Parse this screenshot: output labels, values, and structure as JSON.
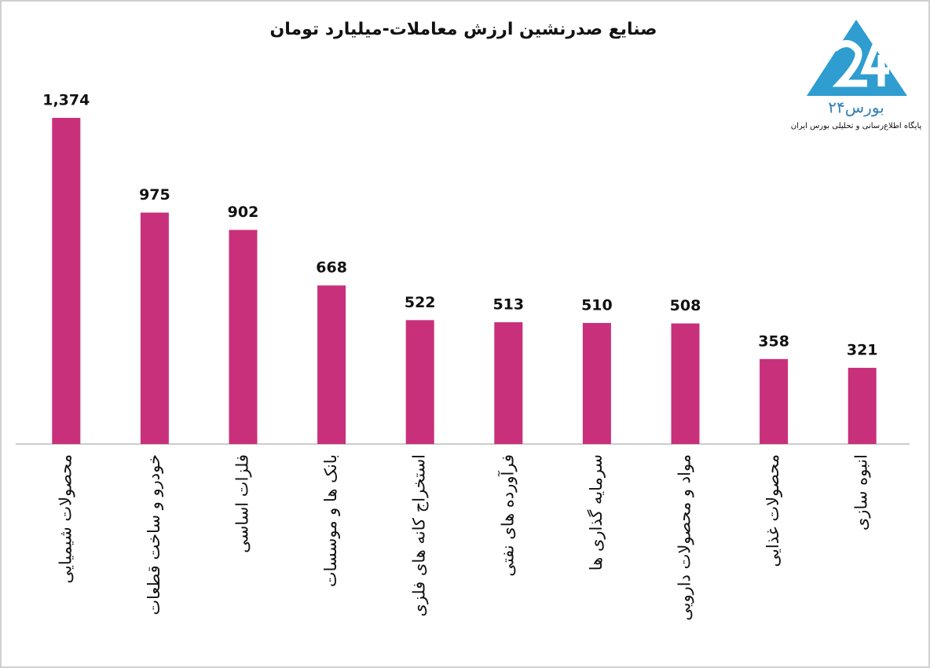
{
  "chart_data": {
    "type": "bar",
    "title": "صنایع صدرنشین ارزش معاملات-میلیارد تومان",
    "categories": [
      "محصولات شیمیایی",
      "خودرو و ساخت قطعات",
      "فلزات اساسی",
      "بانک ها و موسسات",
      "استخراج کانه های فلزی",
      "فرآورده های نفتی",
      "سرمایه گذاری ها",
      "مواد و محصولات دارویی",
      "محصولات غذایی",
      "انبوه سازی"
    ],
    "values": [
      1374,
      975,
      902,
      668,
      522,
      513,
      510,
      508,
      358,
      321
    ],
    "value_labels": [
      "1,374",
      "975",
      "902",
      "668",
      "522",
      "513",
      "510",
      "508",
      "358",
      "321"
    ],
    "color": "#c8307b"
  },
  "logo": {
    "name": "بورس۲۴",
    "tagline": "پایگاه اطلاع‌رسانی و تحلیلی بورس ایران"
  }
}
